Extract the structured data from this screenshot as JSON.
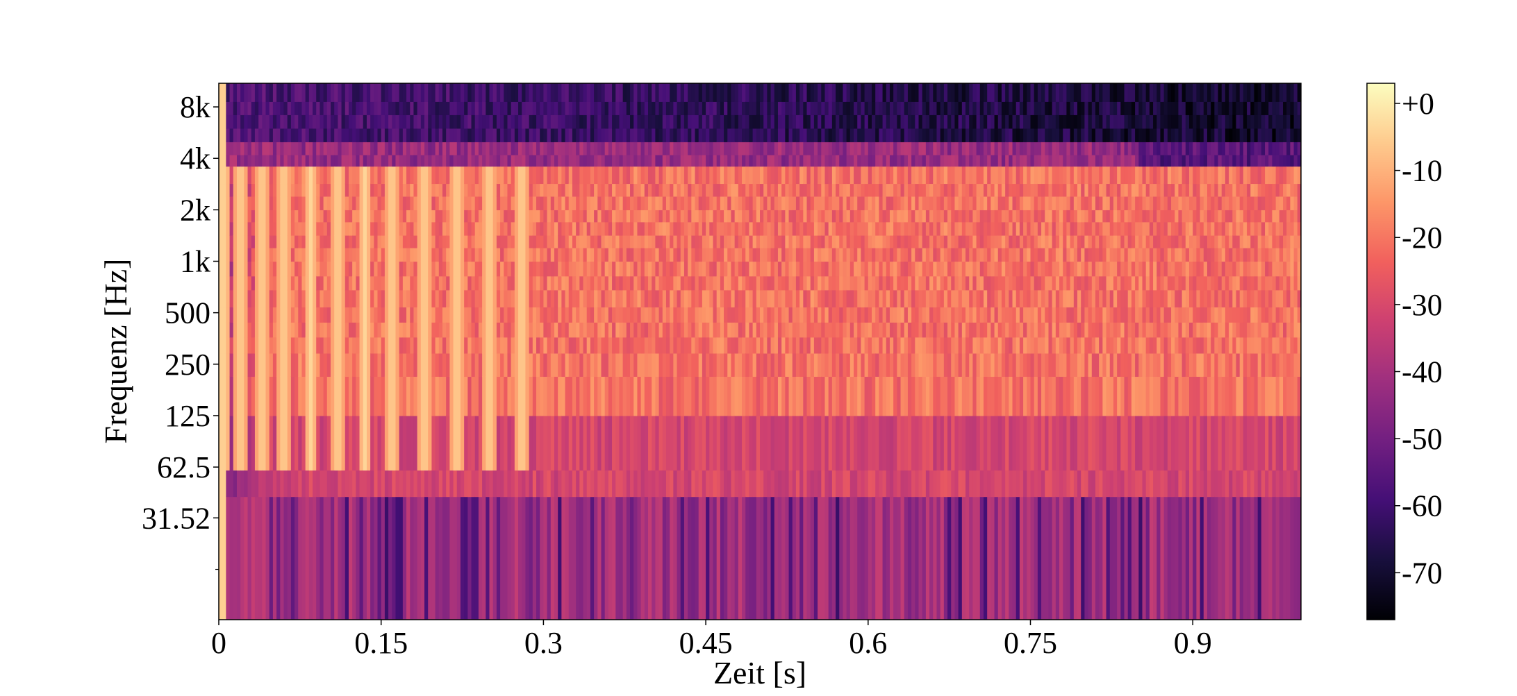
{
  "chart_data": {
    "type": "heatmap",
    "title": "",
    "xlabel": "Zeit [s]",
    "ylabel": "Frequenz [Hz]",
    "x_range": [
      0,
      1.0
    ],
    "x_ticks": [
      {
        "value": 0,
        "label": "0"
      },
      {
        "value": 0.15,
        "label": "0.15"
      },
      {
        "value": 0.3,
        "label": "0.3"
      },
      {
        "value": 0.45,
        "label": "0.45"
      },
      {
        "value": 0.6,
        "label": "0.6"
      },
      {
        "value": 0.75,
        "label": "0.75"
      },
      {
        "value": 0.9,
        "label": "0.9"
      }
    ],
    "y_scale": "log2",
    "y_range": [
      8,
      11000
    ],
    "y_ticks": [
      {
        "value": 31.52,
        "label": "31.52"
      },
      {
        "value": 62.5,
        "label": "62.5"
      },
      {
        "value": 125,
        "label": "125"
      },
      {
        "value": 250,
        "label": "250"
      },
      {
        "value": 500,
        "label": "500"
      },
      {
        "value": 1000,
        "label": "1k"
      },
      {
        "value": 2000,
        "label": "2k"
      },
      {
        "value": 4000,
        "label": "4k"
      },
      {
        "value": 8000,
        "label": "8k"
      }
    ],
    "y_minor_ticks": [
      15.75
    ],
    "colormap": "magma",
    "colormap_stops": [
      "#000004",
      "#180f3d",
      "#440f76",
      "#721f81",
      "#9e2f7f",
      "#cd4071",
      "#f1605d",
      "#fd9668",
      "#feca8d",
      "#fcfdbf"
    ],
    "colorbar": {
      "range": [
        -77,
        3
      ],
      "ticks": [
        {
          "value": 0,
          "label": "+0"
        },
        {
          "value": -10,
          "label": "-10"
        },
        {
          "value": -20,
          "label": "-20"
        },
        {
          "value": -30,
          "label": "-30"
        },
        {
          "value": -40,
          "label": "-40"
        },
        {
          "value": -50,
          "label": "-50"
        },
        {
          "value": -60,
          "label": "-60"
        },
        {
          "value": -70,
          "label": "-70"
        }
      ]
    },
    "legend": "none",
    "grid": false
  }
}
